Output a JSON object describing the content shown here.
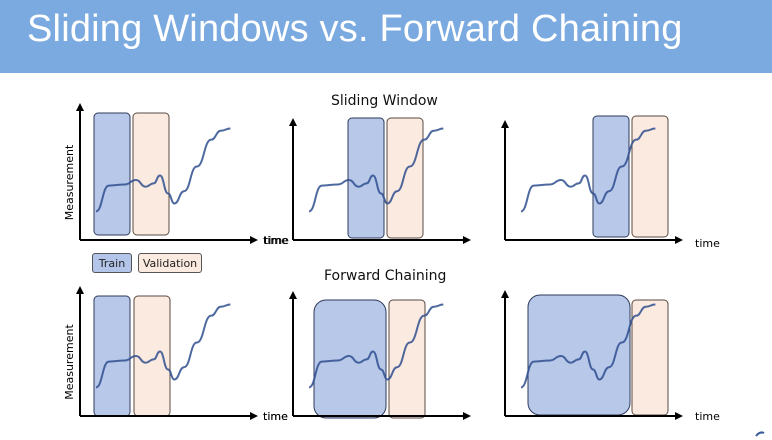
{
  "slide": {
    "title": "Sliding Windows vs. Forward Chaining"
  },
  "sections": {
    "sliding_title": "Sliding Window",
    "forward_title": "Forward Chaining"
  },
  "axes": {
    "x_label": "time",
    "y_label": "Measurement"
  },
  "legend": {
    "train_label": "Train",
    "validation_label": "Validation"
  },
  "colors": {
    "header": "#7aaadf",
    "train_fill": "#b3c5e8",
    "validation_fill": "#fbeadf",
    "curve": "#2f4f8f"
  }
}
